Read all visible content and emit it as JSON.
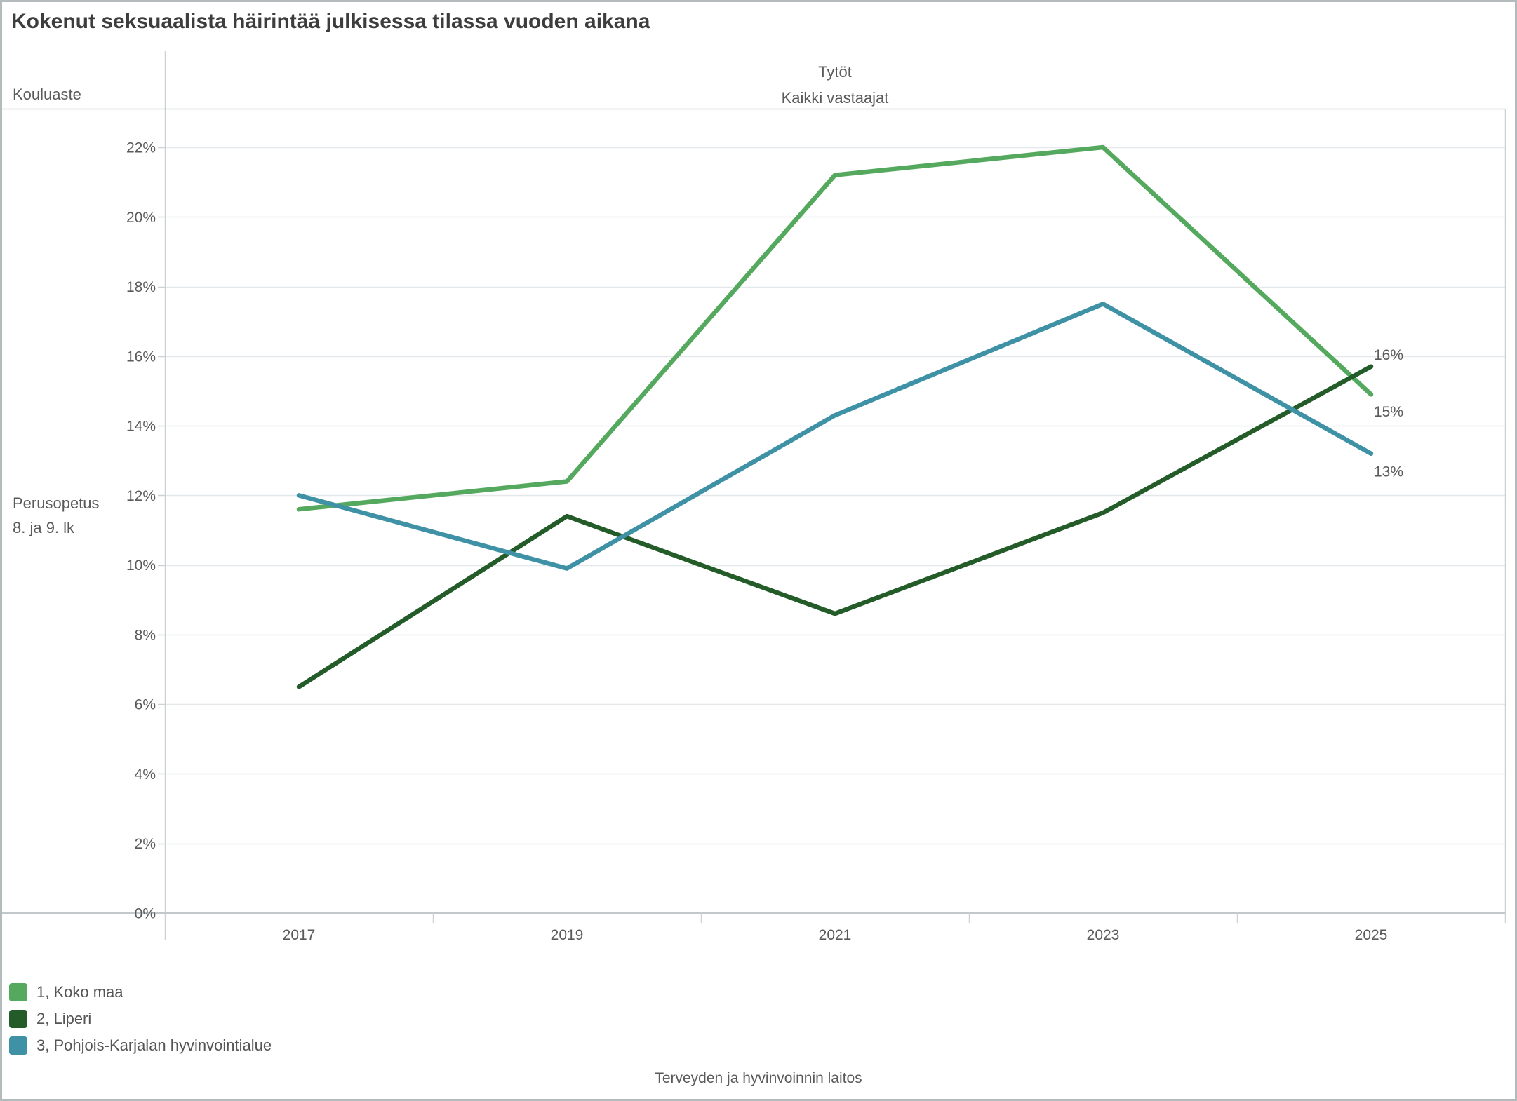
{
  "title": "Kokenut seksuaalista häirintää julkisessa tilassa vuoden aikana",
  "header": {
    "row_dimension_label": "Kouluaste",
    "column_group_label": "Tytöt",
    "column_label": "Kaikki vastaajat",
    "row_label_line1": "Perusopetus",
    "row_label_line2": "8. ja 9. lk"
  },
  "footer": {
    "source_label": "Terveyden ja hyvinvoinnin laitos"
  },
  "colors": {
    "title_text": "#3d3d3d",
    "secondary_text": "#5a5a5a",
    "axis_line": "#c3c8ca",
    "frame_line": "#ccd1d3",
    "gridline": "#e4e8ea",
    "series_koko_maa": "#54a95e",
    "series_liperi": "#235c29",
    "series_pohjois_karjala": "#3f92a5"
  },
  "chart_data": {
    "type": "line",
    "categories": [
      "2017",
      "2019",
      "2021",
      "2023",
      "2025"
    ],
    "series": [
      {
        "name": "1, Koko maa",
        "color": "#54a95e",
        "values": [
          11.6,
          12.4,
          21.2,
          22.0,
          14.9
        ],
        "end_label": "15%"
      },
      {
        "name": "2, Liperi",
        "color": "#235c29",
        "values": [
          6.5,
          11.4,
          8.6,
          11.5,
          15.7
        ],
        "end_label": "16%"
      },
      {
        "name": "3, Pohjois-Karjalan hyvinvointialue",
        "color": "#3f92a5",
        "values": [
          12.0,
          9.9,
          14.3,
          17.5,
          13.2
        ],
        "end_label": "13%"
      }
    ],
    "title": "Kokenut seksuaalista häirintää julkisessa tilassa vuoden aikana",
    "subtitle": [
      "Tytöt",
      "Kaikki vastaajat"
    ],
    "xlabel": "",
    "ylabel": "",
    "ytick_labels": [
      "0%",
      "2%",
      "4%",
      "6%",
      "8%",
      "10%",
      "12%",
      "14%",
      "16%",
      "18%",
      "20%",
      "22%"
    ],
    "ylim": [
      0,
      22
    ],
    "ytick_step": 2,
    "grid": true,
    "legend_position": "bottom-left"
  }
}
